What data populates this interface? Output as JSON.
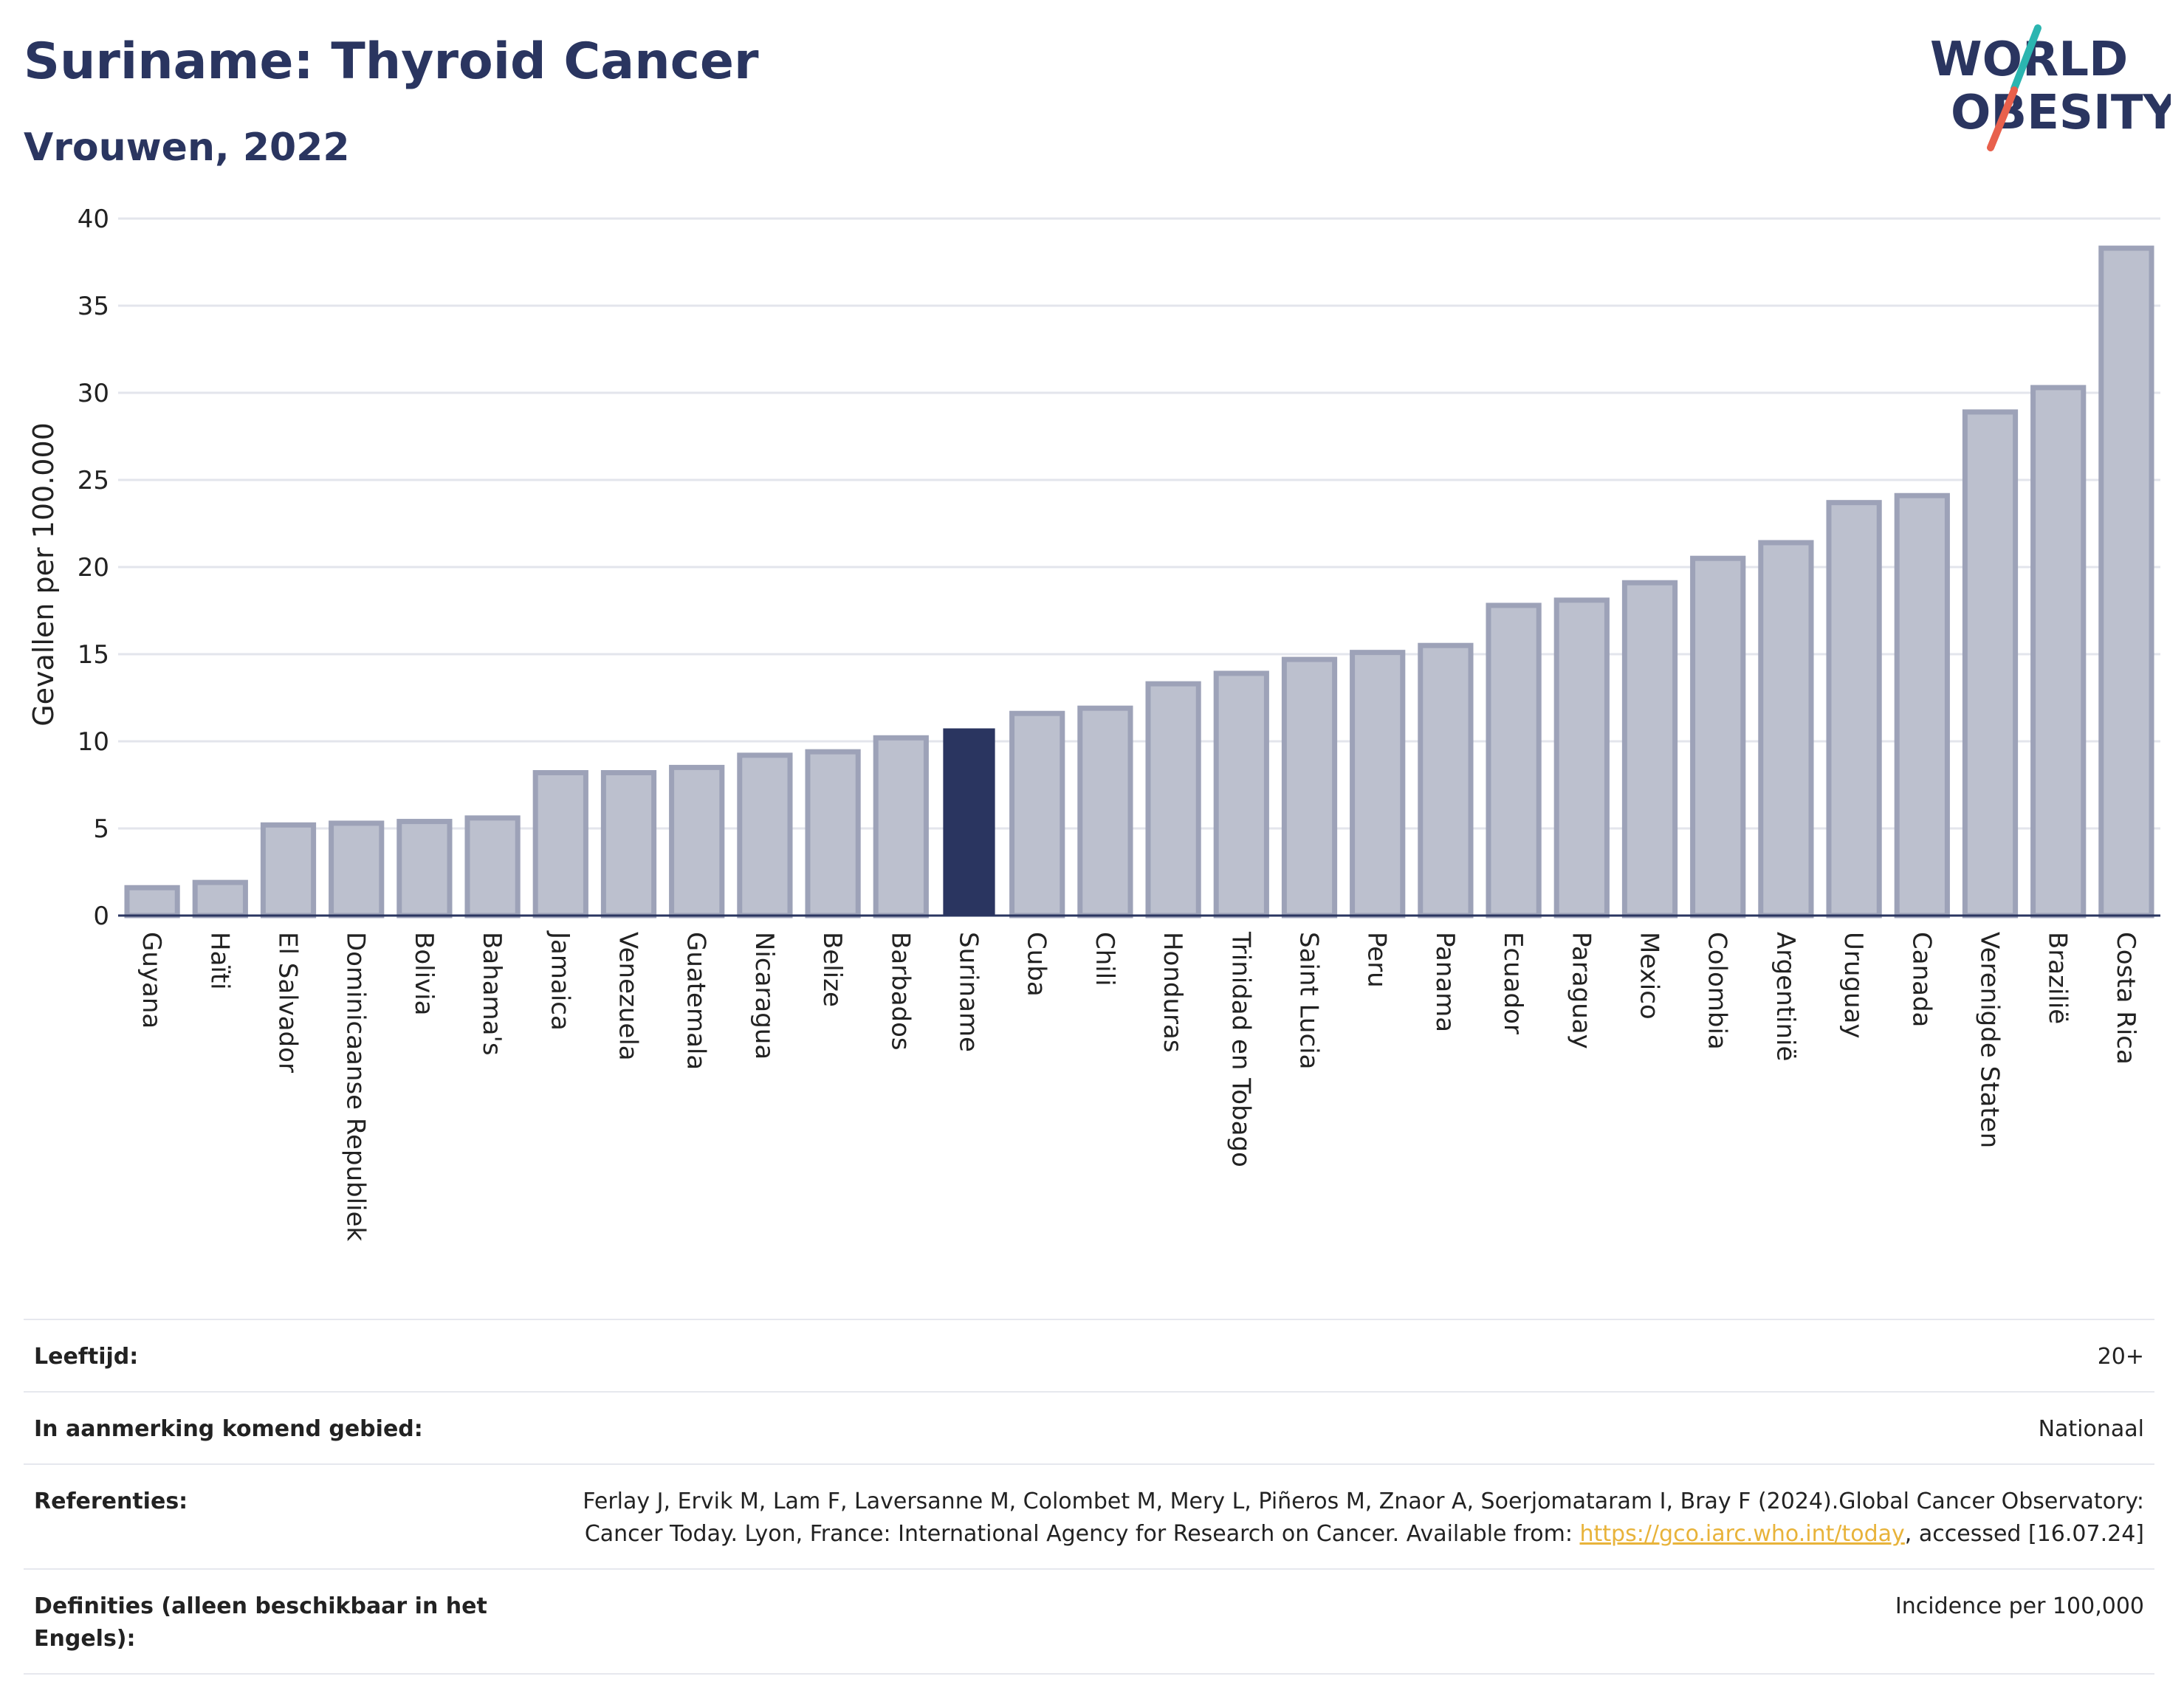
{
  "header": {
    "title": "Suriname: Thyroid Cancer",
    "subtitle": "Vrouwen, 2022"
  },
  "logo": {
    "line1": "WORLD",
    "line2": "OBESITY",
    "accent_colors": [
      "#2bb5b0",
      "#e8604c"
    ],
    "text_color": "#2a3560"
  },
  "chart_data": {
    "type": "bar",
    "title": "Suriname: Thyroid Cancer",
    "subtitle": "Vrouwen, 2022",
    "ylabel": "Gevallen per 100.000",
    "xlabel": "",
    "ylim": [
      0,
      40
    ],
    "yticks": [
      0,
      5,
      10,
      15,
      20,
      25,
      30,
      35,
      40
    ],
    "grid": true,
    "highlight": "Suriname",
    "colors": {
      "bar": "#bcc0ce",
      "bar_edge": "#9da2b8",
      "highlight": "#2a3560",
      "axis": "#2a3560",
      "grid": "#e3e5ec"
    },
    "categories": [
      "Guyana",
      "Haïti",
      "El Salvador",
      "Dominicaanse Republiek",
      "Bolivia",
      "Bahama's",
      "Jamaica",
      "Venezuela",
      "Guatemala",
      "Nicaragua",
      "Belize",
      "Barbados",
      "Suriname",
      "Cuba",
      "Chili",
      "Honduras",
      "Trinidad en Tobago",
      "Saint Lucia",
      "Peru",
      "Panama",
      "Ecuador",
      "Paraguay",
      "Mexico",
      "Colombia",
      "Argentinië",
      "Uruguay",
      "Canada",
      "Verenigde Staten",
      "Brazilië",
      "Costa Rica"
    ],
    "values": [
      1.6,
      1.9,
      5.2,
      5.3,
      5.4,
      5.6,
      8.2,
      8.2,
      8.5,
      9.2,
      9.4,
      10.2,
      10.7,
      11.6,
      11.9,
      13.3,
      13.9,
      14.7,
      15.1,
      15.5,
      17.8,
      18.1,
      19.1,
      20.5,
      21.4,
      23.7,
      24.1,
      28.9,
      30.3,
      38.3
    ]
  },
  "meta": {
    "age_label": "Leeftijd:",
    "age_value": "20+",
    "area_label": "In aanmerking komend gebied:",
    "area_value": "Nationaal",
    "ref_label": "Referenties:",
    "ref_text_1": "Ferlay J, Ervik M, Lam F, Laversanne M, Colombet M, Mery L, Piñeros M, Znaor A, Soerjomataram I, Bray F (2024).Global Cancer Observatory: Cancer Today. Lyon, France: International Agency for Research on Cancer. Available from:",
    "ref_link": "https://gco.iarc.who.int/today",
    "ref_text_2": ", accessed [16.07.24]",
    "def_label": "Definities (alleen beschikbaar in het Engels):",
    "def_value": "Incidence per 100,000"
  }
}
